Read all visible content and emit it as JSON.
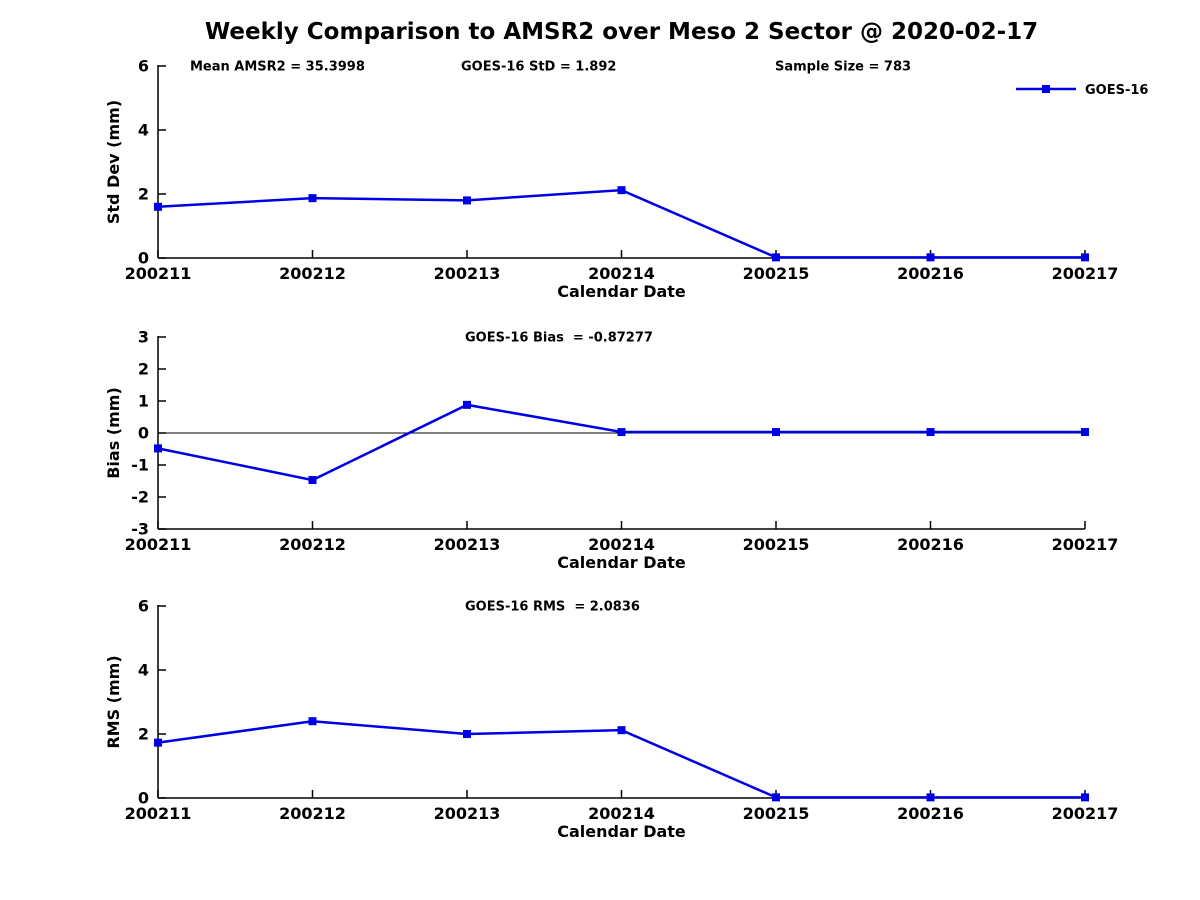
{
  "title": "Weekly Comparison to AMSR2 over Meso 2 Sector @ 2020-02-17",
  "colors": {
    "series": "#0000E6",
    "axis": "#000000",
    "text": "#000000",
    "background": "#ffffff"
  },
  "legend": {
    "label": "GOES-16",
    "position": "top-right"
  },
  "chart_data": [
    {
      "type": "line",
      "name": "std-dev",
      "series_name": "GOES-16",
      "categories": [
        "200211",
        "200212",
        "200213",
        "200214",
        "200215",
        "200216",
        "200217"
      ],
      "values": [
        1.6,
        1.87,
        1.8,
        2.12,
        0.02,
        0.02,
        0.02
      ],
      "xlabel": "Calendar Date",
      "ylabel": "Std Dev (mm)",
      "ylim": [
        0,
        6
      ],
      "yticks": [
        0,
        2,
        4,
        6
      ],
      "zero_line": false,
      "grid": false,
      "legend": true,
      "annotations": [
        {
          "text": "Mean AMSR2 = 35.3998"
        },
        {
          "text": "GOES-16 StD = 1.892"
        },
        {
          "text": "Sample Size = 783"
        }
      ]
    },
    {
      "type": "line",
      "name": "bias",
      "series_name": "GOES-16",
      "categories": [
        "200211",
        "200212",
        "200213",
        "200214",
        "200215",
        "200216",
        "200217"
      ],
      "values": [
        -0.48,
        -1.47,
        0.88,
        0.03,
        0.03,
        0.03,
        0.03
      ],
      "xlabel": "Calendar Date",
      "ylabel": "Bias (mm)",
      "ylim": [
        -3,
        3
      ],
      "yticks": [
        3,
        2,
        1,
        0,
        -1,
        -2,
        -3
      ],
      "zero_line": true,
      "grid": false,
      "legend": false,
      "annotations": [
        {
          "text": "GOES-16 Bias  = -0.87277"
        }
      ]
    },
    {
      "type": "line",
      "name": "rms",
      "series_name": "GOES-16",
      "categories": [
        "200211",
        "200212",
        "200213",
        "200214",
        "200215",
        "200216",
        "200217"
      ],
      "values": [
        1.73,
        2.4,
        2.0,
        2.12,
        0.02,
        0.02,
        0.02
      ],
      "xlabel": "Calendar Date",
      "ylabel": "RMS (mm)",
      "ylim": [
        0,
        6
      ],
      "yticks": [
        0,
        2,
        4,
        6
      ],
      "zero_line": false,
      "grid": false,
      "legend": false,
      "annotations": [
        {
          "text": "GOES-16 RMS  = 2.0836"
        }
      ]
    }
  ]
}
